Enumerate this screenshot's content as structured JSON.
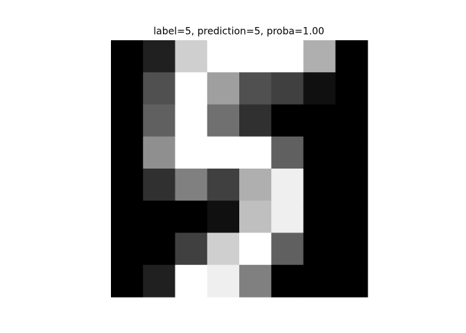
{
  "chart_data": {
    "type": "heatmap",
    "title": "label=5, prediction=5, proba=1.00",
    "colormap": "gray",
    "vmin": 0,
    "vmax": 16,
    "rows": 8,
    "cols": 8,
    "values": [
      [
        0,
        2,
        13,
        16,
        16,
        16,
        11,
        0
      ],
      [
        0,
        5,
        16,
        10,
        5,
        4,
        1,
        0
      ],
      [
        0,
        6,
        16,
        7,
        3,
        0,
        0,
        0
      ],
      [
        0,
        9,
        16,
        16,
        16,
        6,
        0,
        0
      ],
      [
        0,
        3,
        8,
        4,
        11,
        15,
        0,
        0
      ],
      [
        0,
        0,
        0,
        1,
        12,
        15,
        0,
        0
      ],
      [
        0,
        0,
        4,
        13,
        16,
        6,
        0,
        0
      ],
      [
        0,
        2,
        16,
        15,
        8,
        0,
        0,
        0
      ]
    ],
    "axes_visible": false,
    "grid": false
  }
}
